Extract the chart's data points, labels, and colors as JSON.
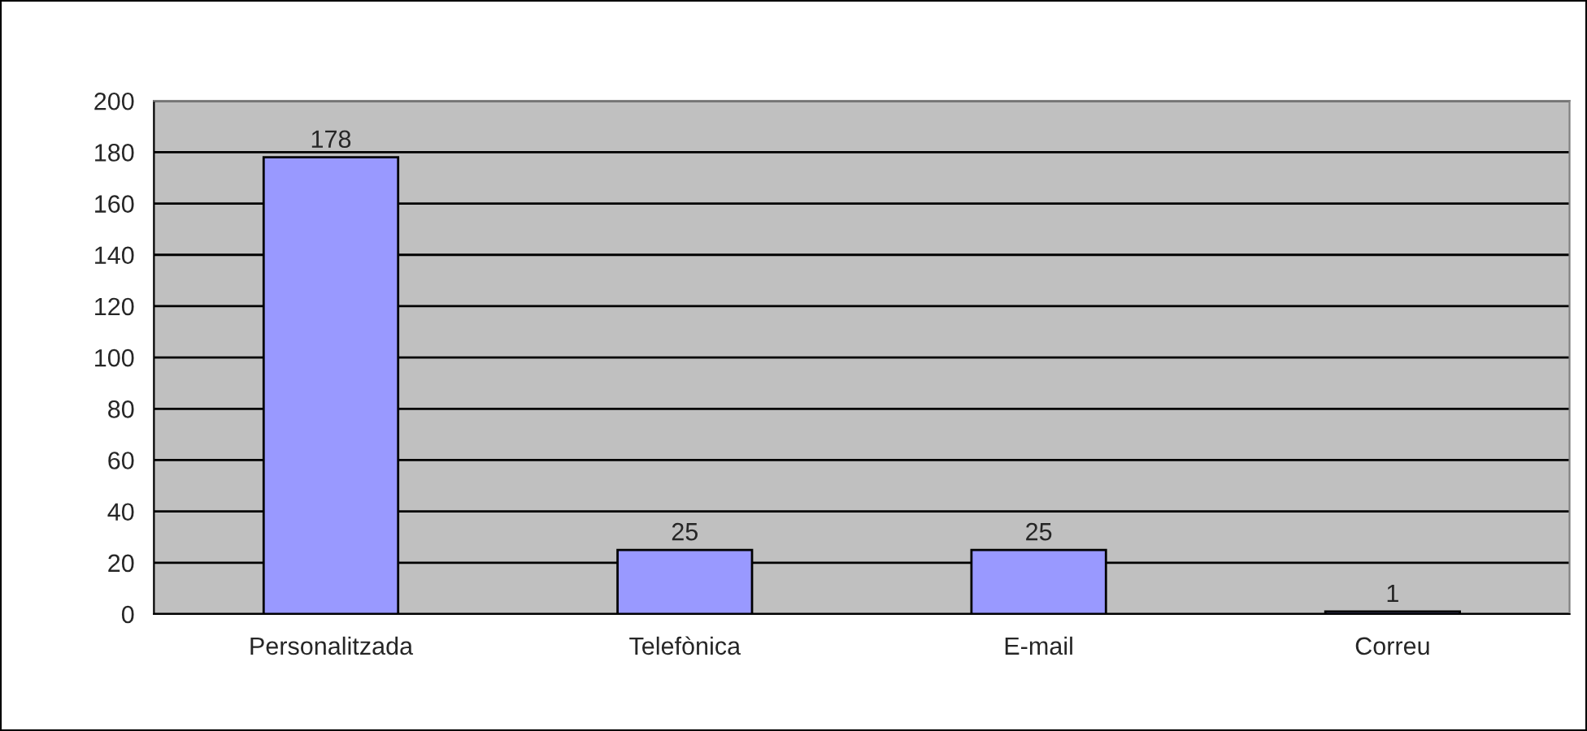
{
  "chart_data": {
    "type": "bar",
    "categories": [
      "Personalitzada",
      "Telefònica",
      "E-mail",
      "Correu"
    ],
    "values": [
      178,
      25,
      25,
      1
    ],
    "color": "#9999ff",
    "ylim": [
      0,
      200
    ],
    "yticks": [
      0,
      20,
      40,
      60,
      80,
      100,
      120,
      140,
      160,
      180,
      200
    ],
    "grid": "y",
    "data_labels": true
  }
}
